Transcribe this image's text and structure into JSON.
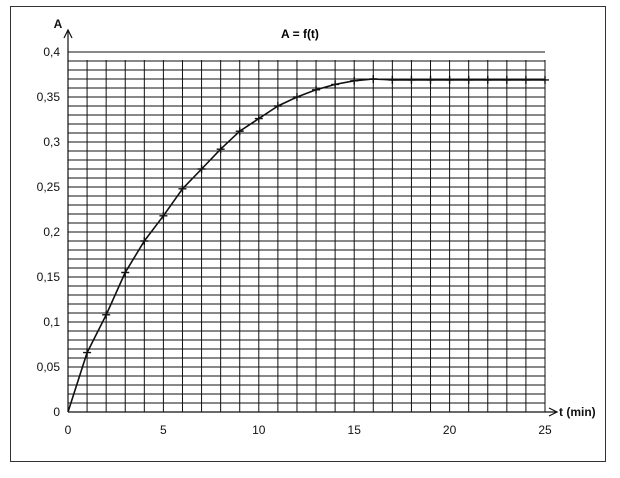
{
  "chart_data": {
    "type": "line",
    "title": "A = f(t)",
    "xlabel": "t (min)",
    "ylabel": "A",
    "xlim": [
      0,
      25
    ],
    "ylim": [
      0,
      0.4
    ],
    "x_ticks": [
      "0",
      "5",
      "10",
      "15",
      "20",
      "25"
    ],
    "y_ticks": [
      "0",
      "0,05",
      "0,1",
      "0,15",
      "0,2",
      "0,25",
      "0,3",
      "0,35",
      "0,4"
    ],
    "grid": true,
    "legend": "none",
    "colors": {
      "line": "#111111",
      "grid": "#111111"
    },
    "series": [
      {
        "marker": "plus",
        "x": [
          0,
          1,
          2,
          3,
          4,
          5,
          6,
          7,
          8,
          9,
          10,
          11,
          12,
          13,
          14,
          15,
          16,
          17,
          18,
          19,
          20,
          21,
          22,
          23,
          24,
          25
        ],
        "y": [
          0,
          0.066,
          0.108,
          0.155,
          0.19,
          0.218,
          0.248,
          0.27,
          0.292,
          0.312,
          0.326,
          0.34,
          0.35,
          0.358,
          0.364,
          0.368,
          0.37,
          0.369,
          0.369,
          0.369,
          0.369,
          0.369,
          0.369,
          0.369,
          0.369,
          0.369
        ]
      }
    ]
  }
}
